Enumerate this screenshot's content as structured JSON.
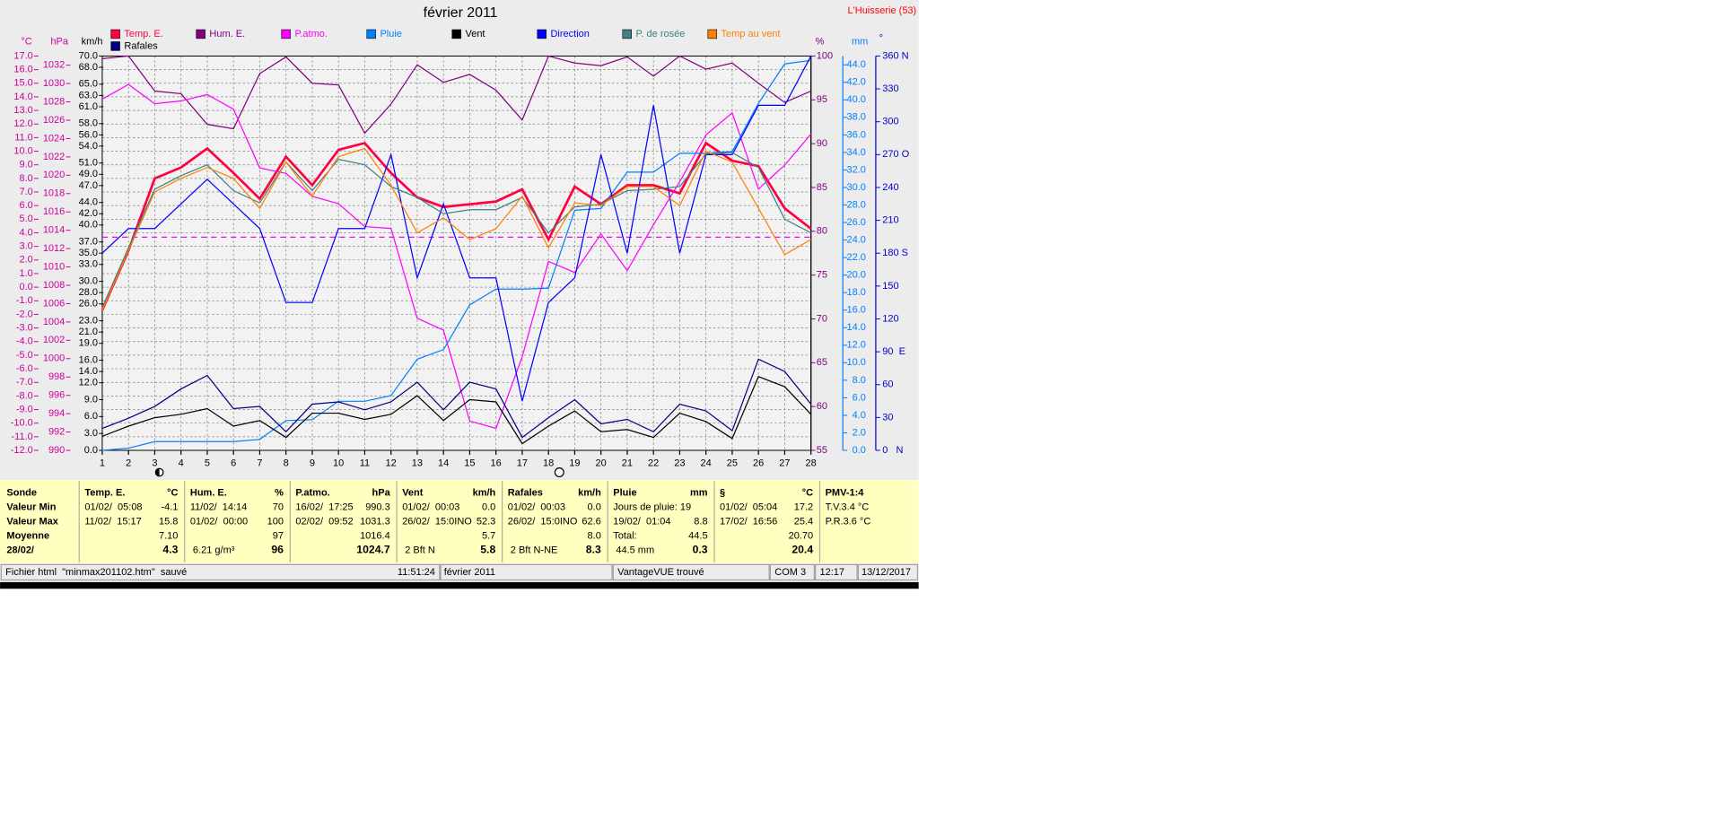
{
  "header": {
    "title": "février 2011",
    "station": "L'Huisserie (53)"
  },
  "chart_data": {
    "type": "line",
    "x": [
      1,
      2,
      3,
      4,
      5,
      6,
      7,
      8,
      9,
      10,
      11,
      12,
      13,
      14,
      15,
      16,
      17,
      18,
      19,
      20,
      21,
      22,
      23,
      24,
      25,
      26,
      27,
      28
    ],
    "xlim": [
      1,
      28
    ],
    "xticks": [
      1,
      2,
      3,
      4,
      5,
      6,
      7,
      8,
      9,
      10,
      11,
      12,
      13,
      14,
      15,
      16,
      17,
      18,
      19,
      20,
      21,
      22,
      23,
      24,
      25,
      26,
      27,
      28
    ],
    "grid": true,
    "axes": [
      {
        "label": "°C",
        "color": "#cc0099",
        "lim": [
          -12,
          17
        ],
        "ticks": [
          {
            "value": -12,
            "label": "-12.0"
          },
          {
            "value": -11,
            "label": "-11.0"
          },
          {
            "value": -10,
            "label": "-10.0"
          },
          {
            "value": -9,
            "label": "-9.0"
          },
          {
            "value": -8,
            "label": "-8.0"
          },
          {
            "value": -7,
            "label": "-7.0"
          },
          {
            "value": -6,
            "label": "-6.0"
          },
          {
            "value": -5,
            "label": "-5.0"
          },
          {
            "value": -4,
            "label": "-4.0"
          },
          {
            "value": -3,
            "label": "-3.0"
          },
          {
            "value": -2,
            "label": "-2.0"
          },
          {
            "value": -1,
            "label": "-1.0"
          },
          {
            "value": 0,
            "label": "0.0"
          },
          {
            "value": 1,
            "label": "1.0"
          },
          {
            "value": 2,
            "label": "2.0"
          },
          {
            "value": 3,
            "label": "3.0"
          },
          {
            "value": 4,
            "label": "4.0"
          },
          {
            "value": 5,
            "label": "5.0"
          },
          {
            "value": 6,
            "label": "6.0"
          },
          {
            "value": 7,
            "label": "7.0"
          },
          {
            "value": 8,
            "label": "8.0"
          },
          {
            "value": 9,
            "label": "9.0"
          },
          {
            "value": 10,
            "label": "10.0"
          },
          {
            "value": 11,
            "label": "11.0"
          },
          {
            "value": 12,
            "label": "12.0"
          },
          {
            "value": 13,
            "label": "13.0"
          },
          {
            "value": 14,
            "label": "14.0"
          },
          {
            "value": 15,
            "label": "15.0"
          },
          {
            "value": 16,
            "label": "16.0"
          },
          {
            "value": 17,
            "label": "17.0"
          }
        ]
      },
      {
        "label": "hPa",
        "color": "#cc0099",
        "lim": [
          990,
          1033
        ],
        "ticks": [
          990,
          992,
          994,
          996,
          998,
          1000,
          1002,
          1004,
          1006,
          1008,
          1010,
          1012,
          1014,
          1016,
          1018,
          1020,
          1022,
          1024,
          1026,
          1028,
          1030,
          1032
        ]
      },
      {
        "label": "km/h",
        "color": "#000000",
        "lim": [
          0,
          70
        ],
        "ticks": [
          {
            "value": 0,
            "label": "0.0"
          },
          {
            "value": 3,
            "label": "3.0"
          },
          {
            "value": 6,
            "label": "6.0"
          },
          {
            "value": 9,
            "label": "9.0"
          },
          {
            "value": 12,
            "label": "12.0"
          },
          {
            "value": 14,
            "label": "14.0"
          },
          {
            "value": 16,
            "label": "16.0"
          },
          {
            "value": 19,
            "label": "19.0"
          },
          {
            "value": 21,
            "label": "21.0"
          },
          {
            "value": 23,
            "label": "23.0"
          },
          {
            "value": 26,
            "label": "26.0"
          },
          {
            "value": 28,
            "label": "28.0"
          },
          {
            "value": 30,
            "label": "30.0"
          },
          {
            "value": 33,
            "label": "33.0"
          },
          {
            "value": 35,
            "label": "35.0"
          },
          {
            "value": 37,
            "label": "37.0"
          },
          {
            "value": 40,
            "label": "40.0"
          },
          {
            "value": 42,
            "label": "42.0"
          },
          {
            "value": 44,
            "label": "44.0"
          },
          {
            "value": 47,
            "label": "47.0"
          },
          {
            "value": 49,
            "label": "49.0"
          },
          {
            "value": 51,
            "label": "51.0"
          },
          {
            "value": 54,
            "label": "54.0"
          },
          {
            "value": 56,
            "label": "56.0"
          },
          {
            "value": 58,
            "label": "58.0"
          },
          {
            "value": 61,
            "label": "61.0"
          },
          {
            "value": 63,
            "label": "63.0"
          },
          {
            "value": 65,
            "label": "65.0"
          },
          {
            "value": 68,
            "label": "68.0"
          },
          {
            "value": 70,
            "label": "70.0"
          }
        ]
      },
      {
        "label": "%",
        "color": "#800080",
        "lim": [
          55,
          100
        ],
        "ticks": [
          55,
          60,
          65,
          70,
          75,
          80,
          85,
          90,
          95,
          100
        ]
      },
      {
        "label": "mm",
        "color": "#0080ff",
        "lim": [
          0,
          45
        ],
        "ticks": [
          {
            "value": 0,
            "label": "0.0"
          },
          {
            "value": 2,
            "label": "2.0"
          },
          {
            "value": 4,
            "label": "4.0"
          },
          {
            "value": 6,
            "label": "6.0"
          },
          {
            "value": 8,
            "label": "8.0"
          },
          {
            "value": 10,
            "label": "10.0"
          },
          {
            "value": 12,
            "label": "12.0"
          },
          {
            "value": 14,
            "label": "14.0"
          },
          {
            "value": 16,
            "label": "16.0"
          },
          {
            "value": 18,
            "label": "18.0"
          },
          {
            "value": 20,
            "label": "20.0"
          },
          {
            "value": 22,
            "label": "22.0"
          },
          {
            "value": 24,
            "label": "24.0"
          },
          {
            "value": 26,
            "label": "26.0"
          },
          {
            "value": 28,
            "label": "28.0"
          },
          {
            "value": 30,
            "label": "30.0"
          },
          {
            "value": 32,
            "label": "32.0"
          },
          {
            "value": 34,
            "label": "34.0"
          },
          {
            "value": 36,
            "label": "36.0"
          },
          {
            "value": 38,
            "label": "38.0"
          },
          {
            "value": 40,
            "label": "40.0"
          },
          {
            "value": 42,
            "label": "42.0"
          },
          {
            "value": 44,
            "label": "44.0"
          }
        ]
      },
      {
        "label": "°",
        "color": "#0000cc",
        "lim": [
          0,
          360
        ],
        "ticks": [
          {
            "value": 0,
            "label": "0   N"
          },
          30,
          60,
          {
            "value": 90,
            "label": "90  E"
          },
          120,
          150,
          {
            "value": 180,
            "label": "180 S"
          },
          210,
          240,
          {
            "value": 270,
            "label": "270 O"
          },
          300,
          330,
          {
            "value": 360,
            "label": "360 N"
          }
        ]
      }
    ],
    "reference_line": {
      "axis": 1,
      "value": 1013.25,
      "color": "#ff00ff"
    },
    "series": [
      {
        "name": "Temp. E.",
        "color": "#ff0040",
        "axis": 0,
        "values": [
          -1.7,
          2.7,
          8.0,
          8.8,
          10.2,
          8.4,
          6.5,
          9.6,
          7.5,
          10.1,
          10.6,
          8.4,
          6.6,
          5.9,
          6.1,
          6.3,
          7.2,
          3.5,
          7.4,
          6.1,
          7.5,
          7.5,
          6.9,
          10.6,
          9.3,
          8.9,
          5.8,
          4.3
        ]
      },
      {
        "name": "Hum. E.",
        "color": "#800080",
        "axis": 3,
        "values": [
          99.7,
          100,
          96.0,
          95.7,
          92.2,
          91.7,
          98.0,
          99.9,
          96.9,
          96.7,
          91.2,
          94.5,
          99.0,
          97.0,
          97.9,
          96.1,
          92.7,
          100,
          99.2,
          98.9,
          99.9,
          97.7,
          100,
          98.5,
          99.2,
          96.9,
          94.7,
          96.0
        ]
      },
      {
        "name": "P.atmo.",
        "color": "#ff00ff",
        "axis": 1,
        "values": [
          1028.3,
          1029.9,
          1027.8,
          1028.1,
          1028.8,
          1027.2,
          1020.8,
          1020.2,
          1017.7,
          1016.9,
          1014.4,
          1014.2,
          1004.4,
          1003.1,
          993.2,
          992.4,
          1000.2,
          1010.6,
          1009.4,
          1013.6,
          1009.6,
          1014.6,
          1019.3,
          1024.4,
          1026.8,
          1018.5,
          1021.1,
          1024.5
        ]
      },
      {
        "name": "Pluie",
        "color": "#0080ff",
        "axis": 4,
        "values": [
          0,
          0.25,
          1.0,
          1.0,
          1.0,
          1.0,
          1.25,
          3.4,
          3.5,
          5.6,
          5.6,
          6.25,
          10.4,
          11.5,
          16.6,
          18.4,
          18.4,
          18.5,
          27.4,
          27.6,
          31.75,
          31.75,
          33.9,
          33.9,
          34.1,
          39.6,
          44.1,
          44.5
        ]
      },
      {
        "name": "Vent",
        "color": "#000000",
        "axis": 2,
        "values": [
          2.5,
          4.3,
          5.8,
          6.4,
          7.4,
          4.3,
          5.3,
          2.3,
          6.6,
          6.6,
          5.5,
          6.4,
          9.7,
          5.3,
          9.0,
          8.6,
          1.2,
          4.3,
          7.0,
          3.3,
          3.7,
          2.3,
          6.6,
          5.1,
          2.1,
          13.1,
          11.3,
          6.4
        ]
      },
      {
        "name": "Direction",
        "color": "#0000ff",
        "axis": 5,
        "values": [
          180,
          202.5,
          202.5,
          225,
          247.5,
          225,
          202.5,
          135,
          135,
          202.5,
          202.5,
          270,
          157.5,
          225,
          157.5,
          157.5,
          45,
          135,
          157.5,
          270,
          180,
          315,
          180,
          270,
          270,
          315,
          315,
          360
        ]
      },
      {
        "name": "P. de rosée",
        "color": "#408080",
        "axis": 0,
        "values": [
          -1.5,
          2.9,
          7.2,
          8.2,
          9.0,
          7.1,
          6.2,
          9.2,
          7.1,
          9.4,
          9.0,
          7.4,
          6.6,
          5.4,
          5.7,
          5.7,
          6.6,
          4.0,
          5.9,
          6.1,
          7.1,
          7.2,
          7.4,
          9.8,
          9.9,
          8.8,
          5.0,
          4.0
        ]
      },
      {
        "name": "Temp au vent",
        "color": "#ff8000",
        "axis": 0,
        "values": [
          -1.7,
          2.7,
          7.0,
          8.0,
          8.8,
          8.0,
          5.8,
          9.2,
          6.7,
          9.6,
          10.2,
          7.5,
          4.0,
          5.1,
          3.5,
          4.3,
          6.7,
          2.9,
          6.2,
          6.0,
          7.4,
          7.4,
          6.0,
          10.0,
          9.2,
          5.8,
          2.4,
          3.5
        ]
      },
      {
        "name": "Rafales",
        "color": "#000080",
        "axis": 2,
        "values": [
          3.9,
          5.7,
          7.8,
          10.9,
          13.3,
          7.4,
          7.8,
          3.3,
          8.2,
          8.6,
          7.2,
          8.6,
          12.1,
          7.2,
          12.1,
          10.9,
          2.3,
          5.8,
          9.0,
          4.7,
          5.5,
          3.3,
          8.2,
          7.0,
          3.5,
          16.2,
          14.0,
          8.2
        ]
      }
    ]
  },
  "stats_table": {
    "columns": [
      {
        "title": "Sonde",
        "unit": null,
        "cells": [
          [
            "Valeur Min",
            null
          ],
          [
            "Valeur Max",
            null
          ],
          [
            "Moyenne",
            null
          ],
          [
            "28/02/",
            null
          ]
        ]
      },
      {
        "title": "Temp. E.",
        "unit": "°C",
        "cells": [
          [
            "01/02/  05:08",
            "-4.1"
          ],
          [
            "11/02/  15:17",
            "15.8"
          ],
          [
            null,
            "7.10"
          ],
          [
            null,
            "4.3"
          ]
        ]
      },
      {
        "title": "Hum. E.",
        "unit": "%",
        "cells": [
          [
            "11/02/  14:14",
            "70"
          ],
          [
            "01/02/  00:00",
            "100"
          ],
          [
            null,
            "97"
          ],
          [
            " 6.21 g/m³",
            "96"
          ]
        ]
      },
      {
        "title": "P.atmo.",
        "unit": "hPa",
        "cells": [
          [
            "16/02/  17:25",
            "990.3"
          ],
          [
            "02/02/  09:52",
            "1031.3"
          ],
          [
            null,
            "1016.4"
          ],
          [
            null,
            "1024.7"
          ]
        ]
      },
      {
        "title": "Vent",
        "unit": "km/h",
        "cells": [
          [
            "01/02/  00:03",
            "0.0"
          ],
          [
            "26/02/  15:0INO",
            "52.3"
          ],
          [
            null,
            "5.7"
          ],
          [
            " 2 Bft N",
            "5.8"
          ]
        ]
      },
      {
        "title": "Rafales",
        "unit": "km/h",
        "cells": [
          [
            "01/02/  00:03",
            "0.0"
          ],
          [
            "26/02/  15:0INO",
            "62.6"
          ],
          [
            null,
            "8.0"
          ],
          [
            " 2 Bft N-NE",
            "8.3"
          ]
        ]
      },
      {
        "title": "Pluie",
        "unit": "mm",
        "cells": [
          [
            "Jours de pluie: 19",
            null
          ],
          [
            "19/02/  01:04",
            "8.8"
          ],
          [
            "Total:",
            "44.5"
          ],
          [
            " 44.5 mm",
            "0.3"
          ]
        ]
      },
      {
        "title": "§",
        "unit": "°C",
        "cells": [
          [
            "01/02/  05:04",
            "17.2"
          ],
          [
            "17/02/  16:56",
            "25.4"
          ],
          [
            null,
            "20.70"
          ],
          [
            null,
            "20.4"
          ]
        ]
      },
      {
        "title": "PMV-1:4",
        "unit": null,
        "cells": [
          [
            "T.V.3.4 °C",
            null
          ],
          [
            "P.R.3.6 °C",
            null
          ]
        ]
      }
    ]
  },
  "status_bar": [
    "Fichier html  \"minmax201102.htm\"  sauvé",
    "11:51:24",
    "février 2011",
    "VantageVUE trouvé",
    "COM 3",
    "12:17",
    "13/12/2017"
  ]
}
